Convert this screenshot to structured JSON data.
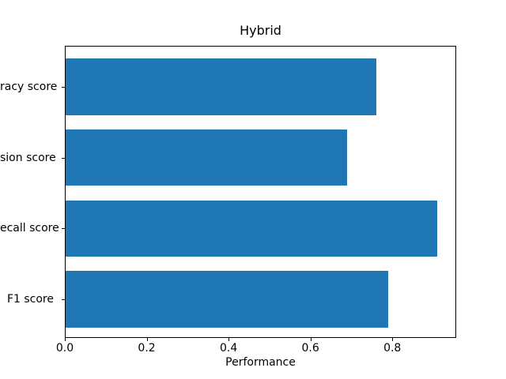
{
  "chart_data": {
    "type": "bar",
    "orientation": "horizontal",
    "title": "Hybrid",
    "xlabel": "Performance",
    "categories": [
      "racy score",
      "sion score",
      "ecall score",
      "F1 score"
    ],
    "values": [
      0.76,
      0.69,
      0.91,
      0.79
    ],
    "xlim": [
      0,
      0.956
    ],
    "xticks": [
      {
        "value": 0.0,
        "label": "0.0"
      },
      {
        "value": 0.2,
        "label": "0.2"
      },
      {
        "value": 0.4,
        "label": "0.4"
      },
      {
        "value": 0.6,
        "label": "0.6"
      },
      {
        "value": 0.8,
        "label": "0.8"
      }
    ],
    "grid": false,
    "legend": false,
    "colors": {
      "bar": "#1f77b4",
      "axis": "#000000",
      "text": "#000000",
      "background": "#ffffff"
    }
  }
}
